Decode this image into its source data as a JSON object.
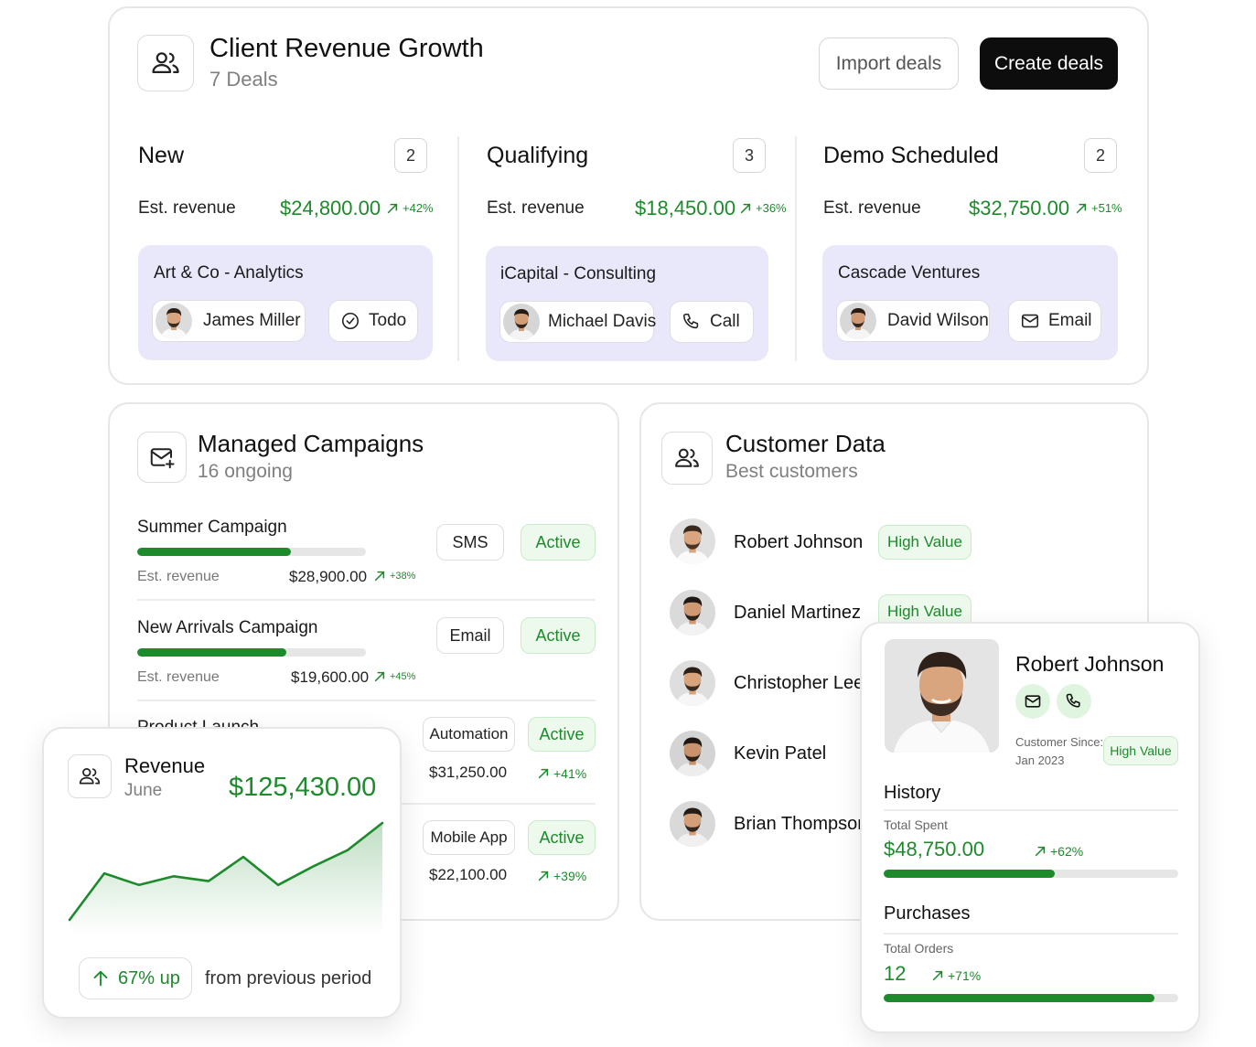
{
  "header": {
    "title": "Client Revenue Growth",
    "subtitle": "7 Deals",
    "import_label": "Import deals",
    "create_label": "Create deals"
  },
  "columns": [
    {
      "title": "New",
      "count": "2",
      "est_label": "Est. revenue",
      "revenue": "$24,800.00",
      "pct": "+42%",
      "deal": {
        "name": "Art & Co - Analytics",
        "person": "James Miller",
        "action": "Todo"
      }
    },
    {
      "title": "Qualifying",
      "count": "3",
      "est_label": "Est. revenue",
      "revenue": "$18,450.00",
      "pct": "+36%",
      "deal": {
        "name": "iCapital - Consulting",
        "person": "Michael Davis",
        "action": "Call"
      }
    },
    {
      "title": "Demo Scheduled",
      "count": "2",
      "est_label": "Est. revenue",
      "revenue": "$32,750.00",
      "pct": "+51%",
      "deal": {
        "name": "Cascade Ventures",
        "person": "David Wilson",
        "action": "Email"
      }
    }
  ],
  "campaigns": {
    "title": "Managed Campaigns",
    "subtitle": "16 ongoing",
    "items": [
      {
        "name": "Summer Campaign",
        "est_label": "Est. revenue",
        "amount": "$28,900.00",
        "pct": "+38%",
        "channel": "SMS",
        "status": "Active",
        "progress": 0.67
      },
      {
        "name": "New Arrivals Campaign",
        "est_label": "Est. revenue",
        "amount": "$19,600.00",
        "pct": "+45%",
        "channel": "Email",
        "status": "Active",
        "progress": 0.65
      },
      {
        "name": "Product Launch",
        "amount": "$31,250.00",
        "pct": "+41%",
        "channel": "Automation",
        "status": "Active"
      },
      {
        "amount": "$22,100.00",
        "pct": "+39%",
        "channel": "Mobile App",
        "status": "Active"
      }
    ]
  },
  "customers": {
    "title": "Customer Data",
    "subtitle": "Best customers",
    "items": [
      {
        "name": "Robert Johnson",
        "badge": "High Value"
      },
      {
        "name": "Daniel Martinez",
        "badge": "High Value"
      },
      {
        "name": "Christopher Lee"
      },
      {
        "name": "Kevin Patel"
      },
      {
        "name": "Brian Thompson"
      }
    ]
  },
  "revenue_card": {
    "title": "Revenue",
    "period": "June",
    "amount": "$125,430.00",
    "change": "67% up",
    "change_note": "from previous period"
  },
  "chart_data": {
    "type": "area",
    "title": "",
    "xlabel": "",
    "ylabel": "",
    "x": [
      1,
      2,
      3,
      4,
      5,
      6,
      7,
      8,
      9,
      10
    ],
    "values": [
      0,
      48,
      36,
      45,
      40,
      65,
      36,
      55,
      72,
      100
    ],
    "ylim": [
      0,
      100
    ],
    "grid": false,
    "color": "#1d8a2c"
  },
  "profile": {
    "name": "Robert Johnson",
    "since_label": "Customer Since:",
    "since_value": "Jan 2023",
    "badge": "High Value",
    "history_title": "History",
    "spent_label": "Total Spent",
    "spent_value": "$48,750.00",
    "spent_pct": "+62%",
    "spent_progress": 0.58,
    "purchases_title": "Purchases",
    "orders_label": "Total Orders",
    "orders_value": "12",
    "orders_pct": "+71%",
    "orders_progress": 0.92
  },
  "colors": {
    "accent": "#1d8a2c",
    "deal_bg": "#e9e8fb",
    "dark": "#0d0d0d"
  }
}
